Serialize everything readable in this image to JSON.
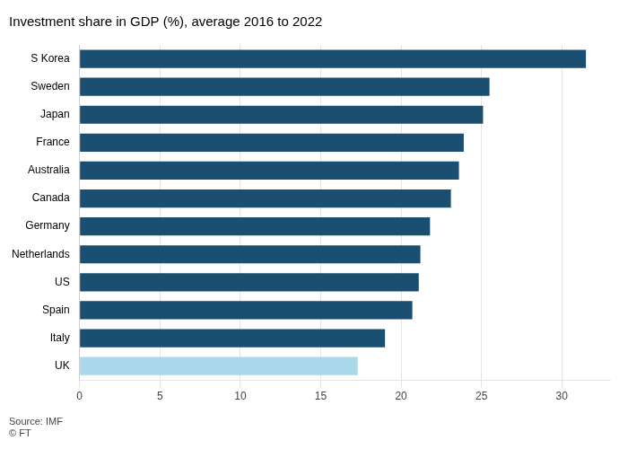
{
  "chart_data": {
    "type": "bar",
    "orientation": "horizontal",
    "title": "Investment share in GDP (%), average 2016 to 2022",
    "categories": [
      "S Korea",
      "Sweden",
      "Japan",
      "France",
      "Australia",
      "Canada",
      "Germany",
      "Netherlands",
      "US",
      "Spain",
      "Italy",
      "UK"
    ],
    "values": [
      31.5,
      25.5,
      25.1,
      23.9,
      23.6,
      23.1,
      21.8,
      21.2,
      21.1,
      20.7,
      19.0,
      17.3
    ],
    "colors": [
      "#1b4f72",
      "#1b4f72",
      "#1b4f72",
      "#1b4f72",
      "#1b4f72",
      "#1b4f72",
      "#1b4f72",
      "#1b4f72",
      "#1b4f72",
      "#1b4f72",
      "#1b4f72",
      "#a8d8ea"
    ],
    "xlim": [
      0,
      33
    ],
    "xticks": [
      0,
      5,
      10,
      15,
      20,
      25,
      30
    ],
    "grid": true,
    "annotations": [
      "Source: IMF",
      "© FT"
    ]
  }
}
